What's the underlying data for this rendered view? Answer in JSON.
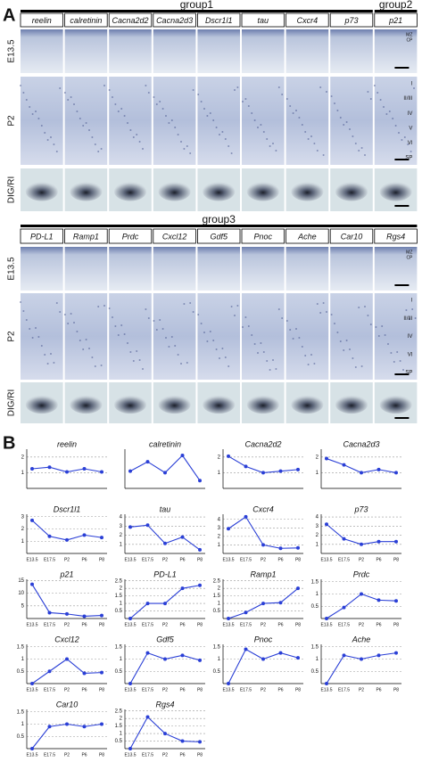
{
  "panel_labels": [
    "A",
    "B"
  ],
  "panel_a": {
    "blocks": [
      {
        "groups": [
          {
            "name": "group1",
            "genes": [
              "reelin",
              "calretinin",
              "Cacna2d2",
              "Cacna2d3",
              "Dscr1l1",
              "tau",
              "Cxcr4",
              "p73"
            ]
          },
          {
            "name": "group2",
            "genes": [
              "p21"
            ]
          }
        ],
        "rows": [
          "E13.5",
          "P2",
          "DIG/RI"
        ],
        "layer_labels": [
          [
            "MZ",
            "CP"
          ],
          [
            "I",
            "II/III",
            "IV",
            "V",
            "VI",
            "SP"
          ],
          []
        ]
      },
      {
        "groups": [
          {
            "name": "group3",
            "genes": [
              "PD-L1",
              "Ramp1",
              "Prdc",
              "Cxcl12",
              "Gdf5",
              "Pnoc",
              "Ache",
              "Car10",
              "Rgs4"
            ]
          }
        ],
        "rows": [
          "E13.5",
          "P2",
          "DIG/RI"
        ],
        "layer_labels": [
          [
            "MZ",
            "CP"
          ],
          [
            "I",
            "II/III",
            "IV",
            "VI",
            "SP"
          ],
          []
        ]
      }
    ]
  },
  "chart_data": [
    {
      "type": "line",
      "title": "reelin",
      "categories": [
        null,
        null,
        null,
        null,
        null
      ],
      "values": [
        1.25,
        1.35,
        1.05,
        1.25,
        1.05
      ],
      "ylim": [
        0,
        2.5
      ],
      "yticks": [
        1,
        2
      ],
      "color": "#2a3fd6"
    },
    {
      "type": "line",
      "title": "calretinin",
      "categories": [
        null,
        null,
        null,
        null,
        null
      ],
      "values": [
        1.1,
        1.7,
        1.0,
        2.1,
        0.5
      ],
      "ylim": [
        0,
        2.5
      ],
      "color": "#2a3fd6"
    },
    {
      "type": "line",
      "title": "Cacna2d2",
      "categories": [
        null,
        null,
        null,
        null,
        null
      ],
      "values": [
        2.05,
        1.4,
        1.0,
        1.1,
        1.2
      ],
      "ylim": [
        0,
        2.5
      ],
      "yticks": [
        1,
        2
      ],
      "color": "#2a3fd6"
    },
    {
      "type": "line",
      "title": "Cacna2d3",
      "categories": [
        null,
        null,
        null,
        null,
        null
      ],
      "values": [
        1.9,
        1.5,
        1.0,
        1.2,
        1.0
      ],
      "ylim": [
        0,
        2.5
      ],
      "yticks": [
        1,
        2
      ],
      "color": "#2a3fd6"
    },
    {
      "type": "line",
      "title": "Dscr1l1",
      "categories": [
        "E13.5",
        "E17.5",
        "P2",
        "P6",
        "P8"
      ],
      "values": [
        2.7,
        1.4,
        1.1,
        1.5,
        1.3
      ],
      "ylim": [
        0,
        3.2
      ],
      "yticks": [
        1,
        2,
        3
      ],
      "color": "#2a3fd6"
    },
    {
      "type": "line",
      "title": "tau",
      "categories": [
        "E13.5",
        "E17.5",
        "P2",
        "P6",
        "P8"
      ],
      "values": [
        2.9,
        3.1,
        1.1,
        1.8,
        0.4
      ],
      "ylim": [
        0,
        4.3
      ],
      "yticks": [
        1,
        2,
        3,
        4
      ],
      "color": "#2a3fd6"
    },
    {
      "type": "line",
      "title": "Cxcr4",
      "categories": [
        "E13.5",
        "E17.5",
        "P2",
        "P6",
        "P8"
      ],
      "values": [
        2.9,
        4.3,
        1.0,
        0.6,
        0.65
      ],
      "ylim": [
        0,
        4.6
      ],
      "yticks": [
        1,
        2,
        3,
        4
      ],
      "color": "#2a3fd6"
    },
    {
      "type": "line",
      "title": "p73",
      "categories": [
        "E13.5",
        "E17.5",
        "P2",
        "P6",
        "P8"
      ],
      "values": [
        3.2,
        1.6,
        1.0,
        1.3,
        1.3
      ],
      "ylim": [
        0,
        4.3
      ],
      "yticks": [
        1,
        2,
        3,
        4
      ],
      "color": "#2a3fd6"
    },
    {
      "type": "line",
      "title": "p21",
      "categories": [
        "E13.5",
        "E17.5",
        "P2",
        "P6",
        "P8"
      ],
      "values": [
        13.5,
        2.3,
        1.8,
        0.9,
        1.2
      ],
      "ylim": [
        0,
        15.5
      ],
      "yticks": [
        5,
        10,
        15
      ],
      "color": "#2a3fd6"
    },
    {
      "type": "line",
      "title": "PD-L1",
      "categories": [
        "E13.5",
        "E17.5",
        "P2",
        "P6",
        "P8"
      ],
      "values": [
        0,
        1.0,
        1.0,
        2.0,
        2.2
      ],
      "ylim": [
        0,
        2.6
      ],
      "yticks": [
        0.5,
        1,
        1.5,
        2,
        2.5
      ],
      "color": "#2a3fd6"
    },
    {
      "type": "line",
      "title": "Ramp1",
      "categories": [
        "E13.5",
        "E17.5",
        "P2",
        "P6",
        "P8"
      ],
      "values": [
        0,
        0.4,
        1.0,
        1.05,
        2.0
      ],
      "ylim": [
        0,
        2.6
      ],
      "yticks": [
        0.5,
        1,
        1.5,
        2,
        2.5
      ],
      "color": "#2a3fd6"
    },
    {
      "type": "line",
      "title": "Prdc",
      "categories": [
        "E13.5",
        "E17.5",
        "P2",
        "P6",
        "P8"
      ],
      "values": [
        0,
        0.45,
        1.0,
        0.75,
        0.72
      ],
      "ylim": [
        0,
        1.6
      ],
      "yticks": [
        0.5,
        1,
        1.5
      ],
      "color": "#2a3fd6"
    },
    {
      "type": "line",
      "title": "Cxcl12",
      "categories": [
        "E13.5",
        "E17.5",
        "P2",
        "P6",
        "P8"
      ],
      "values": [
        0,
        0.5,
        1.0,
        0.42,
        0.45
      ],
      "ylim": [
        0,
        1.6
      ],
      "yticks": [
        0.5,
        1,
        1.5
      ],
      "color": "#2a3fd6"
    },
    {
      "type": "line",
      "title": "Gdf5",
      "categories": [
        "E13.5",
        "E17.5",
        "P2",
        "P6",
        "P8"
      ],
      "values": [
        0,
        1.25,
        1.0,
        1.15,
        0.95
      ],
      "ylim": [
        0,
        1.6
      ],
      "yticks": [
        0.5,
        1,
        1.5
      ],
      "color": "#2a3fd6"
    },
    {
      "type": "line",
      "title": "Pnoc",
      "categories": [
        "E13.5",
        "E17.5",
        "P2",
        "P6",
        "P8"
      ],
      "values": [
        0,
        1.4,
        1.0,
        1.25,
        1.05
      ],
      "ylim": [
        0,
        1.6
      ],
      "yticks": [
        0.5,
        1,
        1.5
      ],
      "color": "#2a3fd6"
    },
    {
      "type": "line",
      "title": "Ache",
      "categories": [
        "E13.5",
        "E17.5",
        "P2",
        "P6",
        "P8"
      ],
      "values": [
        0,
        1.15,
        1.0,
        1.15,
        1.25
      ],
      "ylim": [
        0,
        1.6
      ],
      "yticks": [
        0.5,
        1,
        1.5
      ],
      "color": "#2a3fd6"
    },
    {
      "type": "line",
      "title": "Car10",
      "categories": [
        "E13.5",
        "E17.5",
        "P2",
        "P6",
        "P8"
      ],
      "values": [
        0,
        0.9,
        1.0,
        0.9,
        1.0
      ],
      "ylim": [
        0,
        1.6
      ],
      "yticks": [
        0.5,
        1,
        1.5
      ],
      "color": "#2a3fd6"
    },
    {
      "type": "line",
      "title": "Rgs4",
      "categories": [
        "E13.5",
        "E17.5",
        "P2",
        "P6",
        "P8"
      ],
      "values": [
        0,
        2.1,
        1.0,
        0.5,
        0.45
      ],
      "ylim": [
        0,
        2.6
      ],
      "yticks": [
        0.5,
        1,
        1.5,
        2,
        2.5
      ],
      "color": "#2a3fd6"
    }
  ]
}
